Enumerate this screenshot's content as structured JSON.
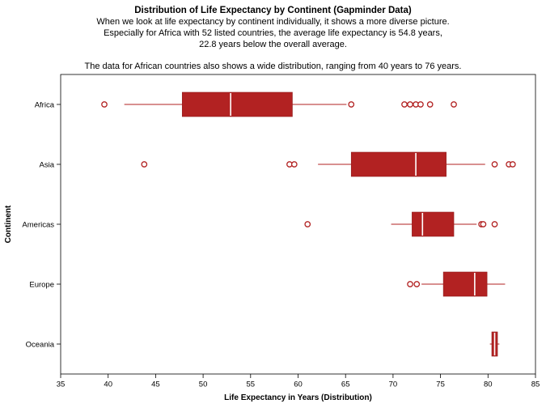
{
  "chart_data": {
    "type": "boxplot",
    "orientation": "horizontal",
    "title": "Distribution of Life Expectancy by Continent (Gapminder Data)",
    "subtitle_lines": [
      "When we look at life expectancy by continent individually, it shows a more diverse picture.",
      "Especially for Africa with 52 listed countries, the average life expectancy is 54.8 years,",
      "22.8 years below the overall average.",
      "The data for African countries also shows a wide distribution, ranging from 40 years to 76 years."
    ],
    "xlabel": "Life Expectancy in Years (Distribution)",
    "ylabel": "Continent",
    "xlim": [
      35,
      85
    ],
    "x_ticks": [
      35,
      40,
      45,
      50,
      55,
      60,
      65,
      70,
      75,
      80,
      85
    ],
    "grid": false,
    "categories": [
      "Africa",
      "Asia",
      "Americas",
      "Europe",
      "Oceania"
    ],
    "box_color": "#b22222",
    "box_stroke_color": "#8f1d1d",
    "median_color": "#ffffff",
    "axis_color": "#000000",
    "series": [
      {
        "category": "Africa",
        "whisker_low": 41.7,
        "q1": 47.8,
        "median": 52.9,
        "q3": 59.4,
        "whisker_high": 65.1,
        "outliers": [
          39.6,
          65.6,
          71.2,
          71.8,
          72.4,
          72.9,
          73.9,
          76.4
        ]
      },
      {
        "category": "Asia",
        "whisker_low": 62.1,
        "q1": 65.6,
        "median": 72.4,
        "q3": 75.6,
        "whisker_high": 79.7,
        "outliers": [
          43.8,
          59.1,
          59.6,
          80.7,
          82.2,
          82.6
        ]
      },
      {
        "category": "Americas",
        "whisker_low": 69.8,
        "q1": 72.0,
        "median": 73.1,
        "q3": 76.4,
        "whisker_high": 78.8,
        "outliers": [
          61.0,
          79.3,
          79.5,
          80.7
        ]
      },
      {
        "category": "Europe",
        "whisker_low": 73.0,
        "q1": 75.3,
        "median": 78.6,
        "q3": 79.9,
        "whisker_high": 81.8,
        "outliers": [
          71.8,
          72.5
        ]
      },
      {
        "category": "Oceania",
        "whisker_low": 80.2,
        "q1": 80.4,
        "median": 80.7,
        "q3": 81.0,
        "whisker_high": 81.2,
        "outliers": []
      }
    ]
  }
}
